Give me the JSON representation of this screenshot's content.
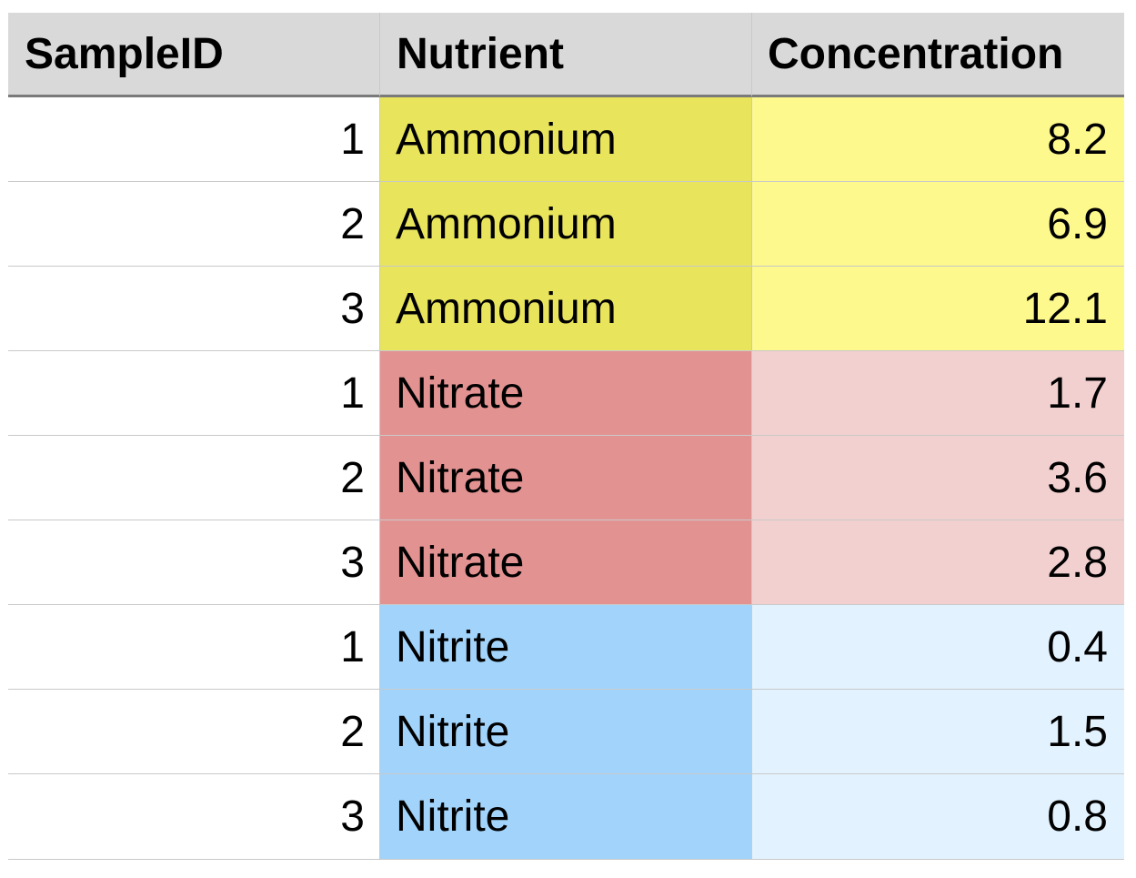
{
  "table": {
    "headers": [
      "SampleID",
      "Nutrient",
      "Concentration"
    ],
    "rows": [
      {
        "sample_id": "1",
        "nutrient": "Ammonium",
        "concentration": "8.2"
      },
      {
        "sample_id": "2",
        "nutrient": "Ammonium",
        "concentration": "6.9"
      },
      {
        "sample_id": "3",
        "nutrient": "Ammonium",
        "concentration": "12.1"
      },
      {
        "sample_id": "1",
        "nutrient": "Nitrate",
        "concentration": "1.7"
      },
      {
        "sample_id": "2",
        "nutrient": "Nitrate",
        "concentration": "3.6"
      },
      {
        "sample_id": "3",
        "nutrient": "Nitrate",
        "concentration": "2.8"
      },
      {
        "sample_id": "1",
        "nutrient": "Nitrite",
        "concentration": "0.4"
      },
      {
        "sample_id": "2",
        "nutrient": "Nitrite",
        "concentration": "1.5"
      },
      {
        "sample_id": "3",
        "nutrient": "Nitrite",
        "concentration": "0.8"
      }
    ]
  },
  "colors": {
    "header_bg": "#d9d9d9",
    "Ammonium": {
      "nutrient_bg": "#e8e45c",
      "value_bg": "#fdf98d"
    },
    "Nitrate": {
      "nutrient_bg": "#e39292",
      "value_bg": "#f2d0cf"
    },
    "Nitrite": {
      "nutrient_bg": "#a2d4fb",
      "value_bg": "#e2f2fe"
    }
  }
}
